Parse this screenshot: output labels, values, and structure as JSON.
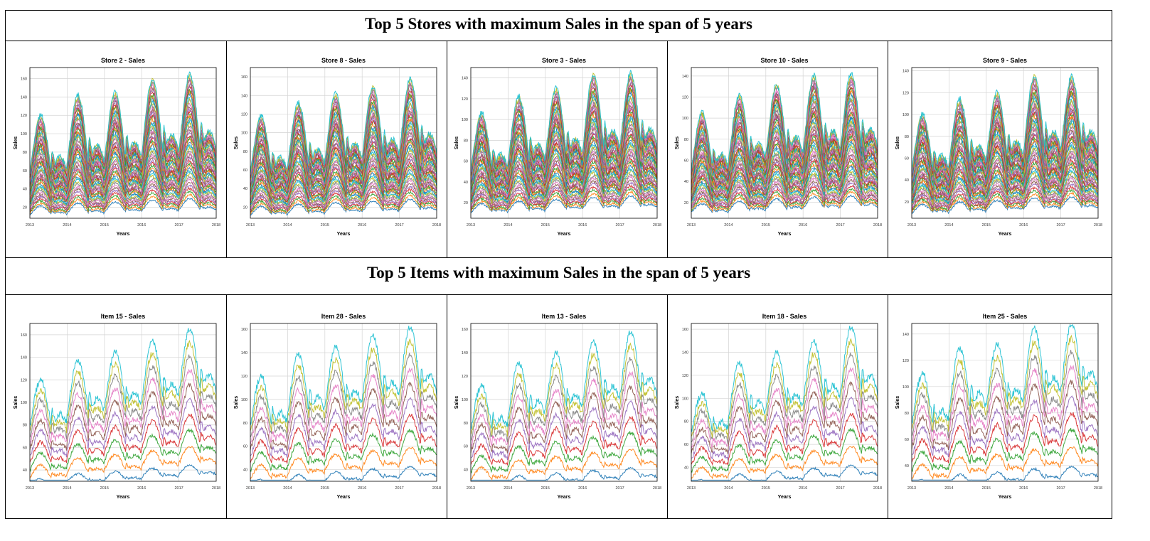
{
  "headers": {
    "stores": "Top 5 Stores with maximum Sales in the span of  5 years",
    "items": "Top 5 Items with maximum Sales in the span of  5 years"
  },
  "axis": {
    "xlabel": "Years",
    "ylabel": "Sales",
    "x_ticks": [
      "2013",
      "2014",
      "2015",
      "2016",
      "2017",
      "2018"
    ]
  },
  "palette": [
    "#1f77b4",
    "#ff7f0e",
    "#2ca02c",
    "#d62728",
    "#9467bd",
    "#8c564b",
    "#e377c2",
    "#7f7f7f",
    "#bcbd22",
    "#17becf"
  ],
  "chart_data": [
    {
      "type": "line",
      "title": "Store 2 - Sales",
      "xlabel": "Years",
      "ylabel": "Sales",
      "xlim": [
        2013,
        2018
      ],
      "ylim": [
        8,
        172
      ],
      "yticks": [
        20,
        40,
        60,
        80,
        100,
        120,
        140,
        160
      ],
      "series_count": 50,
      "min_peaks": [
        27,
        30,
        33,
        35,
        38
      ],
      "max_peaks": [
        120,
        142,
        145,
        160,
        165
      ],
      "grid": true,
      "legend": false
    },
    {
      "type": "line",
      "title": "Store 8 - Sales",
      "xlabel": "Years",
      "ylabel": "Sales",
      "xlim": [
        2013,
        2018
      ],
      "ylim": [
        8,
        170
      ],
      "yticks": [
        20,
        40,
        60,
        80,
        100,
        120,
        140,
        160
      ],
      "series_count": 50,
      "min_peaks": [
        26,
        29,
        32,
        34,
        37
      ],
      "max_peaks": [
        118,
        132,
        142,
        150,
        158
      ],
      "grid": true,
      "legend": false
    },
    {
      "type": "line",
      "title": "Store 3 - Sales",
      "xlabel": "Years",
      "ylabel": "Sales",
      "xlim": [
        2013,
        2018
      ],
      "ylim": [
        5,
        150
      ],
      "yticks": [
        20,
        40,
        60,
        80,
        100,
        120,
        140
      ],
      "series_count": 50,
      "min_peaks": [
        24,
        27,
        30,
        32,
        35
      ],
      "max_peaks": [
        106,
        122,
        130,
        144,
        145
      ],
      "grid": true,
      "legend": false
    },
    {
      "type": "line",
      "title": "Store 10 - Sales",
      "xlabel": "Years",
      "ylabel": "Sales",
      "xlim": [
        2013,
        2018
      ],
      "ylim": [
        5,
        148
      ],
      "yticks": [
        20,
        40,
        60,
        80,
        100,
        120,
        140
      ],
      "series_count": 50,
      "min_peaks": [
        24,
        27,
        30,
        32,
        35
      ],
      "max_peaks": [
        105,
        122,
        132,
        141,
        142
      ],
      "grid": true,
      "legend": false
    },
    {
      "type": "line",
      "title": "Store 9 - Sales",
      "xlabel": "Years",
      "ylabel": "Sales",
      "xlim": [
        2013,
        2018
      ],
      "ylim": [
        5,
        143
      ],
      "yticks": [
        20,
        40,
        60,
        80,
        100,
        120,
        140
      ],
      "series_count": 50,
      "min_peaks": [
        22,
        25,
        28,
        30,
        32
      ],
      "max_peaks": [
        100,
        114,
        120,
        136,
        135
      ],
      "grid": true,
      "legend": false
    },
    {
      "type": "line",
      "title": "Item 15 - Sales",
      "xlabel": "Years",
      "ylabel": "Sales",
      "xlim": [
        2013,
        2018
      ],
      "ylim": [
        30,
        170
      ],
      "yticks": [
        40,
        60,
        80,
        100,
        120,
        140,
        160
      ],
      "series_count": 10,
      "min_peaks": [
        58,
        66,
        70,
        75,
        80
      ],
      "max_peaks": [
        120,
        138,
        145,
        155,
        165
      ],
      "grid": true,
      "legend": false
    },
    {
      "type": "line",
      "title": "Item 28 - Sales",
      "xlabel": "Years",
      "ylabel": "Sales",
      "xlim": [
        2013,
        2018
      ],
      "ylim": [
        30,
        165
      ],
      "yticks": [
        40,
        60,
        80,
        100,
        120,
        140,
        160
      ],
      "series_count": 10,
      "min_peaks": [
        56,
        62,
        68,
        72,
        76
      ],
      "max_peaks": [
        120,
        140,
        145,
        155,
        162
      ],
      "grid": true,
      "legend": false
    },
    {
      "type": "line",
      "title": "Item 13 - Sales",
      "xlabel": "Years",
      "ylabel": "Sales",
      "xlim": [
        2013,
        2018
      ],
      "ylim": [
        30,
        165
      ],
      "yticks": [
        40,
        60,
        80,
        100,
        120,
        140,
        160
      ],
      "series_count": 10,
      "min_peaks": [
        55,
        62,
        66,
        70,
        74
      ],
      "max_peaks": [
        112,
        132,
        140,
        150,
        158
      ],
      "grid": true,
      "legend": false
    },
    {
      "type": "line",
      "title": "Item 18 - Sales",
      "xlabel": "Years",
      "ylabel": "Sales",
      "xlim": [
        2013,
        2018
      ],
      "ylim": [
        28,
        165
      ],
      "yticks": [
        40,
        60,
        80,
        100,
        120,
        140,
        160
      ],
      "series_count": 10,
      "min_peaks": [
        54,
        60,
        65,
        70,
        74
      ],
      "max_peaks": [
        104,
        132,
        140,
        150,
        162
      ],
      "grid": true,
      "legend": false
    },
    {
      "type": "line",
      "title": "Item 25 - Sales",
      "xlabel": "Years",
      "ylabel": "Sales",
      "xlim": [
        2013,
        2018
      ],
      "ylim": [
        28,
        148
      ],
      "yticks": [
        40,
        60,
        80,
        100,
        120,
        140
      ],
      "series_count": 10,
      "min_peaks": [
        52,
        58,
        62,
        66,
        70
      ],
      "max_peaks": [
        110,
        130,
        132,
        145,
        148
      ],
      "grid": true,
      "legend": false
    }
  ]
}
